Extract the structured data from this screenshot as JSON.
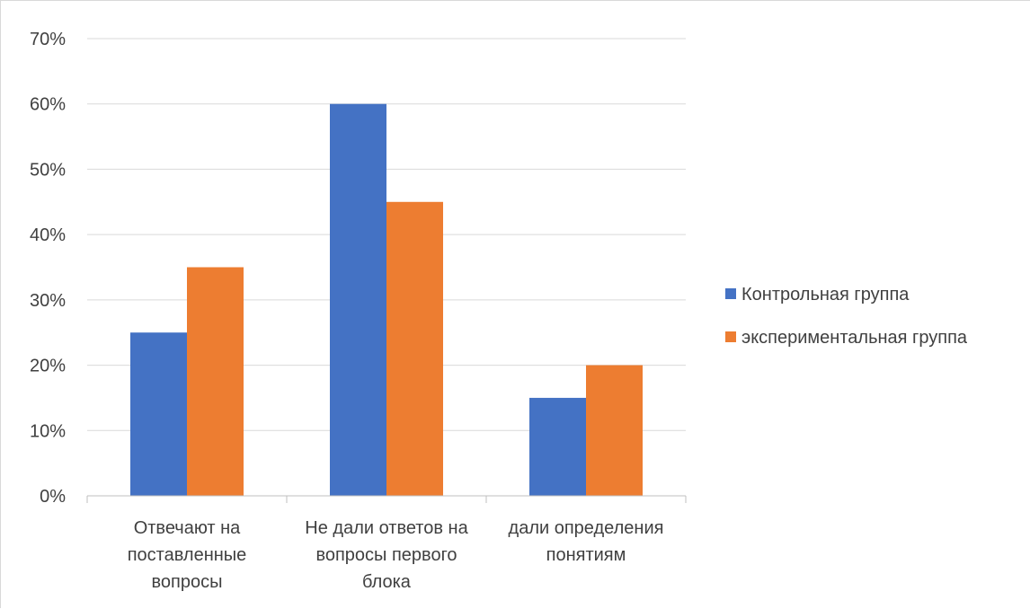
{
  "chart_data": {
    "type": "bar",
    "categories": [
      [
        "Отвечают на",
        "поставленные",
        "вопросы"
      ],
      [
        "Не дали ответов на",
        "вопросы первого",
        "блока"
      ],
      [
        "дали определения",
        "понятиям"
      ]
    ],
    "series": [
      {
        "name": "Контрольная группа",
        "values": [
          25,
          60,
          15
        ],
        "color": "#4472C4"
      },
      {
        "name": "экспериментальная группа",
        "values": [
          35,
          45,
          20
        ],
        "color": "#ED7D31"
      }
    ],
    "ylim": [
      0,
      70
    ],
    "yticks": [
      0,
      10,
      20,
      30,
      40,
      50,
      60,
      70
    ],
    "ytick_labels": [
      "0%",
      "10%",
      "20%",
      "30%",
      "40%",
      "50%",
      "60%",
      "70%"
    ],
    "grid": true,
    "legend_position": "right",
    "gridline_color": "#d9d9d9",
    "axis_color": "#bfbfbf"
  }
}
